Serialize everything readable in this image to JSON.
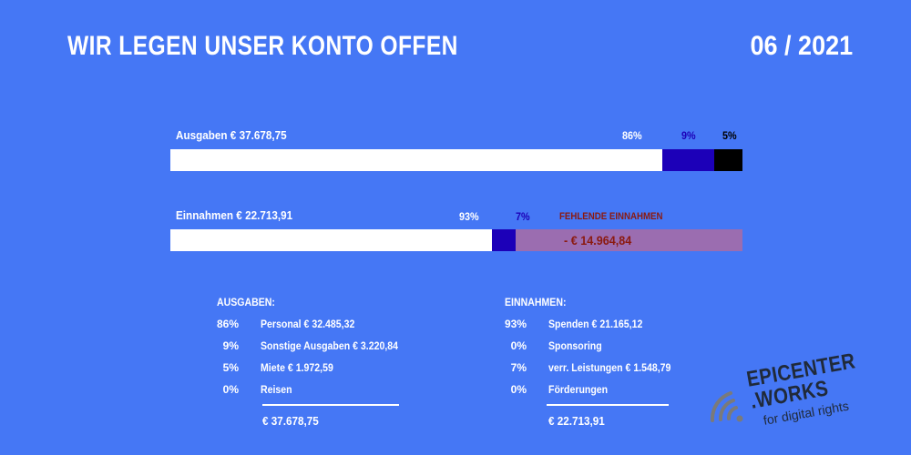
{
  "header": {
    "title": "WIR LEGEN UNSER KONTO OFFEN",
    "date": "06 / 2021"
  },
  "chart_data": [
    {
      "type": "bar",
      "orientation": "horizontal-stacked",
      "label": "Ausgaben € 37.678,75",
      "total": 37678.75,
      "series": [
        {
          "label": "86%",
          "value": 86,
          "color": "#FFFFFF",
          "label_color": "#FFFFFF"
        },
        {
          "label": "9%",
          "value": 9,
          "color": "#1C00B8",
          "label_color": "#1C00B8"
        },
        {
          "label": "5%",
          "value": 5,
          "color": "#000000",
          "label_color": "#000000"
        }
      ]
    },
    {
      "type": "bar",
      "orientation": "horizontal-stacked",
      "label": "Einnahmen € 22.713,91",
      "total": 22713.91,
      "series": [
        {
          "label": "93%",
          "value": 21165.12,
          "color": "#FFFFFF",
          "label_color": "#FFFFFF"
        },
        {
          "label": "7%",
          "value": 1548.79,
          "color": "#1C00B8",
          "label_color": "#1C00B8"
        },
        {
          "label": "- € 14.964,84",
          "value": 14964.84,
          "color": "#9B6DB0",
          "label_color": "#8B1A10"
        }
      ],
      "annotation": "FEHLENDE EINNAHMEN"
    }
  ],
  "ausgaben": {
    "heading": "AUSGABEN:",
    "rows": [
      {
        "pct": "86%",
        "text": "Personal € 32.485,32"
      },
      {
        "pct": "9%",
        "text": "Sonstige Ausgaben € 3.220,84"
      },
      {
        "pct": "5%",
        "text": "Miete € 1.972,59"
      },
      {
        "pct": "0%",
        "text": "Reisen"
      }
    ],
    "total": "€ 37.678,75"
  },
  "einnahmen": {
    "heading": "EINNAHMEN:",
    "rows": [
      {
        "pct": "93%",
        "text": "Spenden € 21.165,12"
      },
      {
        "pct": "0%",
        "text": "Sponsoring"
      },
      {
        "pct": "7%",
        "text": "verr. Leistungen € 1.548,79"
      },
      {
        "pct": "0%",
        "text": "Förderungen"
      }
    ],
    "total": "€ 22.713,91"
  },
  "logo": {
    "line1": "EPICENTER",
    "line2": ".WORKS",
    "line3": "for digital rights"
  }
}
